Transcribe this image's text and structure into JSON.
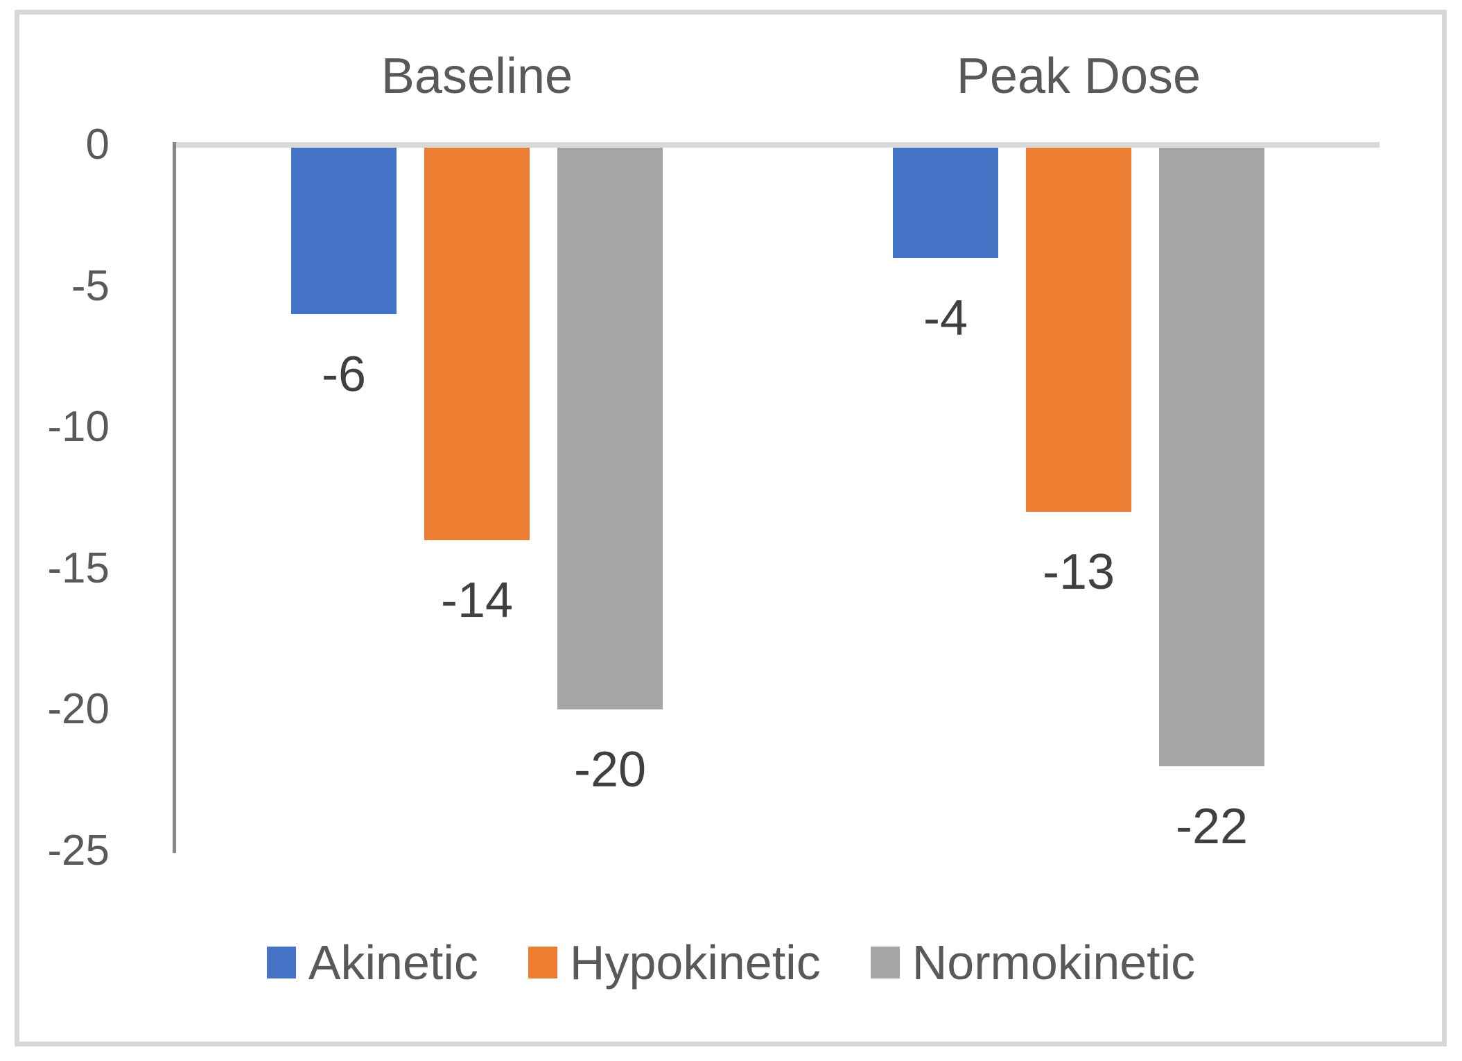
{
  "chart_data": {
    "type": "bar",
    "orientation": "vertical-negative",
    "categories": [
      "Baseline",
      "Peak Dose"
    ],
    "series": [
      {
        "name": "Akinetic",
        "color": "#4472C4",
        "values": [
          -6,
          -4
        ],
        "labels": [
          "-6",
          "-4"
        ]
      },
      {
        "name": "Hypokinetic",
        "color": "#ED7D31",
        "values": [
          -14,
          -13
        ],
        "labels": [
          "-14",
          "-13"
        ]
      },
      {
        "name": "Normokinetic",
        "color": "#A5A5A5",
        "values": [
          -20,
          -22
        ],
        "labels": [
          "-20",
          "-22"
        ]
      }
    ],
    "y_axis": {
      "min": -25,
      "max": 0,
      "tick_values": [
        0,
        -5,
        -10,
        -15,
        -20,
        -25
      ],
      "tick_labels": [
        "0",
        "-5",
        "-10",
        "-15",
        "-20",
        "-25"
      ]
    },
    "gridlines": "zero-line-only",
    "legend": {
      "position": "bottom",
      "entries": [
        "Akinetic",
        "Hypokinetic",
        "Normokinetic"
      ]
    },
    "title": "",
    "xlabel": "",
    "ylabel": ""
  },
  "colors": {
    "frame_border": "#D8D8D8",
    "zero_line": "#D9D9D9",
    "y_axis_line": "#878787",
    "category_label_text": "#595959",
    "tick_label_text": "#595959",
    "data_label_text": "#404040",
    "legend_text": "#595959",
    "background": "#FFFFFF"
  }
}
